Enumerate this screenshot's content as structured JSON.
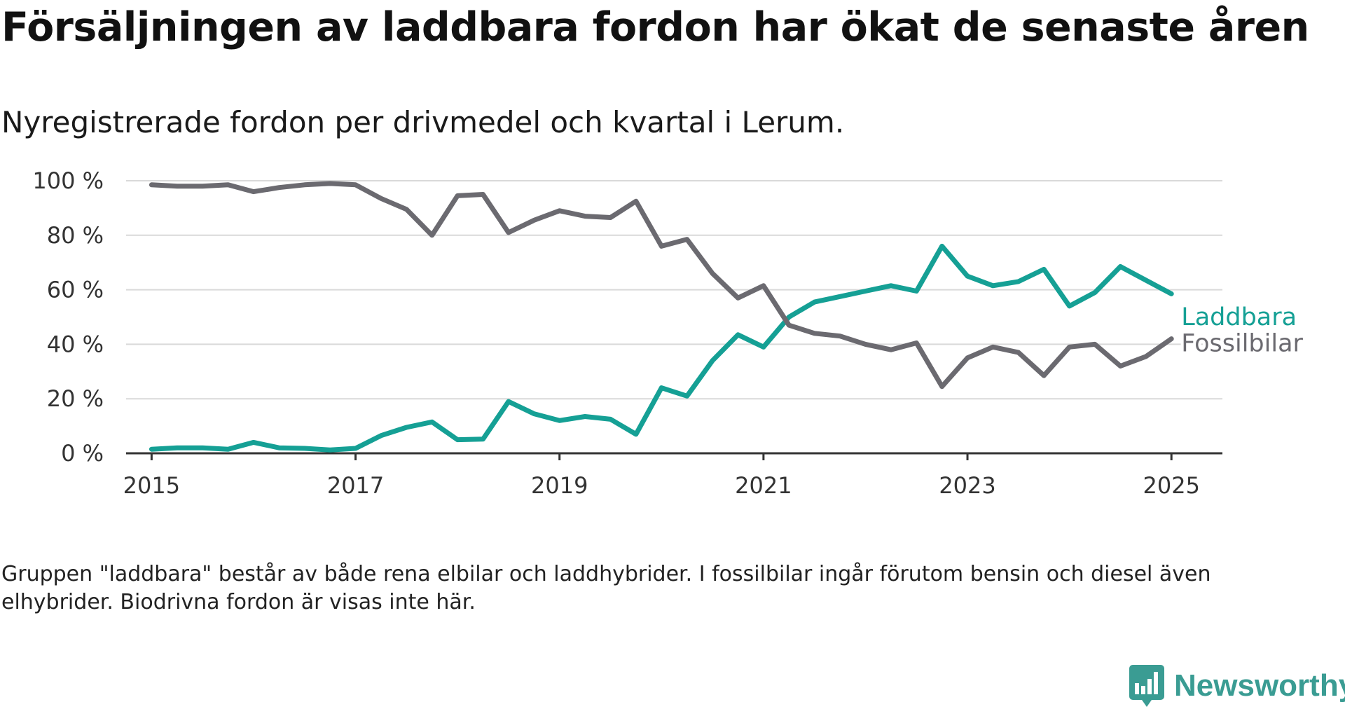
{
  "title": "Försäljningen av laddbara fordon har ökat de senaste åren",
  "subtitle": "Nyregistrerade fordon per drivmedel och kvartal i Lerum.",
  "footnote": "Gruppen \"laddbara\" består av både rena elbilar och laddhybrider. I fossilbilar ingår förutom bensin och diesel även elhybrider. Biodrivna fordon är visas inte här.",
  "brand": {
    "name": "Newsworthy",
    "icon": "newsworthy-logo-icon"
  },
  "colors": {
    "laddbara": "#15a095",
    "fossilbilar": "#6b6a70",
    "grid": "#d9d9d9",
    "axis": "#333333",
    "brand": "#3a9c93"
  },
  "chart_data": {
    "type": "line",
    "title": "Försäljningen av laddbara fordon har ökat de senaste åren",
    "subtitle": "Nyregistrerade fordon per drivmedel och kvartal i Lerum.",
    "xlabel": "",
    "ylabel": "",
    "xlim": [
      2014.75,
      2025.5
    ],
    "ylim": [
      0,
      100
    ],
    "xticks": [
      2015,
      2017,
      2019,
      2021,
      2023,
      2025
    ],
    "xtick_labels": [
      "2015",
      "2017",
      "2019",
      "2021",
      "2023",
      "2025"
    ],
    "yticks": [
      0,
      20,
      40,
      60,
      80,
      100
    ],
    "ytick_labels": [
      "0 %",
      "20 %",
      "40 %",
      "60 %",
      "80 %",
      "100 %"
    ],
    "grid": "horizontal",
    "legend": "inline labels at line ends (right)",
    "x": [
      2015.0,
      2015.25,
      2015.5,
      2015.75,
      2016.0,
      2016.25,
      2016.5,
      2016.75,
      2017.0,
      2017.25,
      2017.5,
      2017.75,
      2018.0,
      2018.25,
      2018.5,
      2018.75,
      2019.0,
      2019.25,
      2019.5,
      2019.75,
      2020.0,
      2020.25,
      2020.5,
      2020.75,
      2021.0,
      2021.25,
      2021.5,
      2021.75,
      2022.0,
      2022.25,
      2022.5,
      2022.75,
      2023.0,
      2023.25,
      2023.5,
      2023.75,
      2024.0,
      2024.25,
      2024.5,
      2024.75,
      2025.0
    ],
    "series": [
      {
        "name": "Laddbara",
        "color": "#15a095",
        "values": [
          1.5,
          2,
          2,
          1.5,
          4,
          2,
          1.8,
          1.2,
          1.8,
          6.5,
          9.5,
          11.5,
          5,
          5.2,
          19,
          14.5,
          12,
          13.5,
          12.5,
          7,
          24,
          21,
          34,
          43.5,
          39,
          50,
          55.5,
          57.5,
          59.5,
          61.5,
          59.5,
          76,
          65,
          61.5,
          63,
          67.5,
          54,
          59,
          68.5,
          63.5,
          58.5
        ]
      },
      {
        "name": "Fossilbilar",
        "color": "#6b6a70",
        "values": [
          98.5,
          98,
          98,
          98.5,
          96,
          97.5,
          98.5,
          99,
          98.5,
          93.5,
          89.5,
          80,
          94.5,
          95,
          81,
          85.5,
          89,
          87,
          86.5,
          92.5,
          76,
          78.5,
          66,
          57,
          61.5,
          47,
          44,
          43,
          40,
          38,
          40.5,
          24.5,
          35,
          39,
          37,
          28.5,
          39,
          40,
          32,
          35.5,
          42
        ]
      }
    ]
  }
}
